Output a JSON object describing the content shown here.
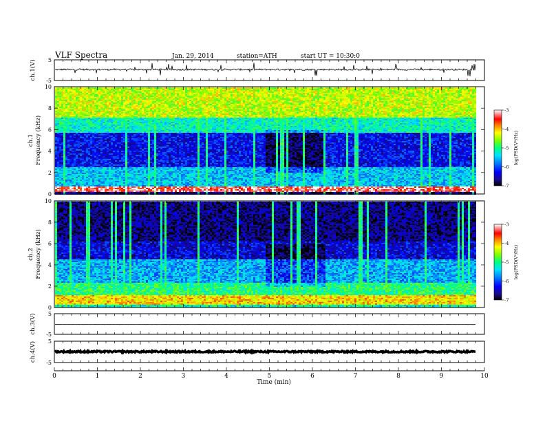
{
  "header": {
    "title": "VLF Spectra",
    "date": "Jan. 29, 2014",
    "station": "station=ATH",
    "start": "start UT =  10:30:0"
  },
  "chart_data": [
    {
      "type": "line",
      "name": "ch1-waveform",
      "ylabel": "ch.1(V)",
      "ylim": [
        -5,
        5
      ],
      "yticks": [
        "5",
        "-5"
      ],
      "xlim": [
        0,
        10
      ],
      "data_end_min": 9.8,
      "baseline_v": 0.3,
      "noise_v": 0.4,
      "spike_v": 1.6,
      "color": "#000000"
    },
    {
      "type": "heatmap",
      "name": "ch1-spectrogram",
      "ylabel": "ch.1\nFrequency  (kHz)",
      "ylabel_lines": [
        "ch.1",
        "Frequency  (kHz)"
      ],
      "ylim": [
        0,
        10
      ],
      "yticks": [
        "0",
        "2",
        "4",
        "6",
        "8",
        "10"
      ],
      "xlim": [
        0,
        10
      ],
      "data_end_min": 9.8,
      "colorbar": {
        "label": "log(PSD(V²/Hz)",
        "range": [
          -7,
          -3
        ],
        "ticks": [
          "-3",
          "-4",
          "-5",
          "-6",
          "-7"
        ]
      },
      "bands": [
        {
          "f0": 0.0,
          "f1": 0.3,
          "value": -6.6
        },
        {
          "f0": 0.3,
          "f1": 0.8,
          "value": -3.3
        },
        {
          "f0": 0.8,
          "f1": 2.6,
          "value": -5.5
        },
        {
          "f0": 2.6,
          "f1": 5.8,
          "value": -6.3
        },
        {
          "f0": 5.8,
          "f1": 7.2,
          "value": -5.2
        },
        {
          "f0": 7.2,
          "f1": 10.0,
          "value": -4.4
        }
      ],
      "quiet_interval_min": [
        4.9,
        6.3
      ]
    },
    {
      "type": "heatmap",
      "name": "ch2-spectrogram",
      "ylabel": "ch.2\nFrequency  (kHz)",
      "ylabel_lines": [
        "ch.2",
        "Frequency  (kHz)"
      ],
      "ylim": [
        0,
        10
      ],
      "yticks": [
        "0",
        "2",
        "4",
        "6",
        "8",
        "10"
      ],
      "xlim": [
        0,
        10
      ],
      "data_end_min": 9.8,
      "colorbar": {
        "label": "log(PSD(V²/Hz)",
        "range": [
          -7,
          -3
        ],
        "ticks": [
          "-3",
          "-4",
          "-5",
          "-6",
          "-7"
        ]
      },
      "bands": [
        {
          "f0": 0.0,
          "f1": 0.3,
          "value": -5.2
        },
        {
          "f0": 0.3,
          "f1": 1.2,
          "value": -4.1
        },
        {
          "f0": 1.2,
          "f1": 2.4,
          "value": -5.0
        },
        {
          "f0": 2.4,
          "f1": 4.6,
          "value": -5.6
        },
        {
          "f0": 4.6,
          "f1": 6.2,
          "value": -6.4
        },
        {
          "f0": 6.2,
          "f1": 10.0,
          "value": -6.7
        }
      ],
      "quiet_interval_min": [
        4.9,
        6.3
      ]
    },
    {
      "type": "line",
      "name": "ch3-waveform",
      "ylabel": "ch.3(V)",
      "ylim": [
        -5,
        5
      ],
      "yticks": [
        "5",
        "-5"
      ],
      "xlim": [
        0,
        10
      ],
      "data_end_min": 9.8,
      "baseline_v": -0.2,
      "noise_v": 0.05,
      "spike_v": 0.0,
      "color": "#000000"
    },
    {
      "type": "line",
      "name": "ch4-waveform",
      "ylabel": "ch.4(V)",
      "ylim": [
        -5,
        5
      ],
      "yticks": [
        "5",
        "-5"
      ],
      "xlim": [
        0,
        10
      ],
      "data_end_min": 9.8,
      "baseline_v": 0.1,
      "noise_v": 0.35,
      "spike_v": 0.0,
      "color": "#000000"
    }
  ],
  "xaxis": {
    "label": "Time  (min)",
    "ticks": [
      "0",
      "1",
      "2",
      "3",
      "4",
      "5",
      "6",
      "7",
      "8",
      "9",
      "10"
    ]
  }
}
